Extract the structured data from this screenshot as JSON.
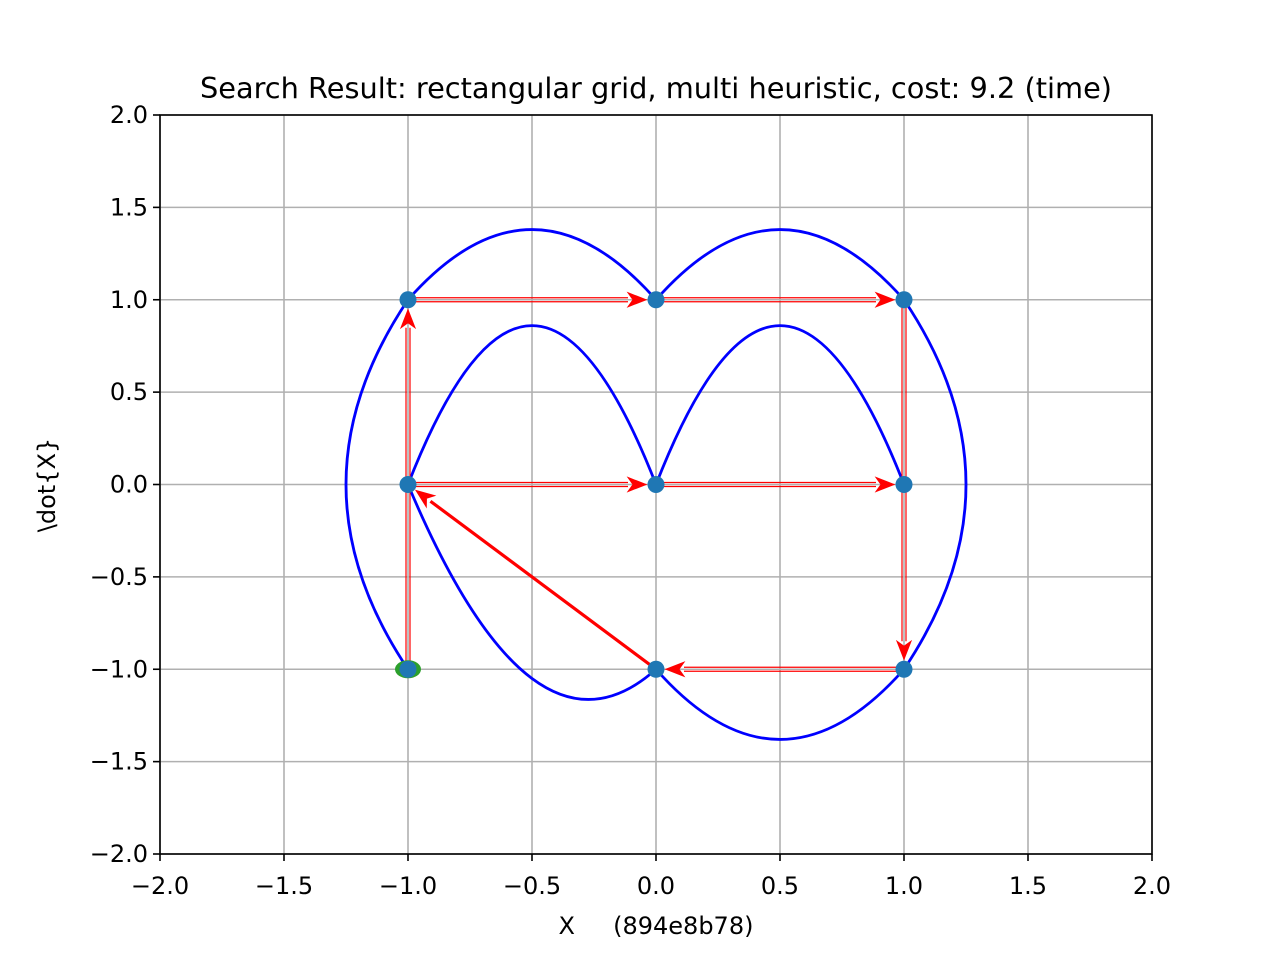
{
  "chart_data": {
    "type": "line",
    "title": "Search Result: rectangular grid, multi heuristic, cost: 9.2 (time)",
    "xlabel": "X     (894e8b78)",
    "ylabel": "\\dot{X}",
    "xlim": [
      -2.0,
      2.0
    ],
    "ylim": [
      -2.0,
      2.0
    ],
    "grid": true,
    "x_ticks": [
      -2.0,
      -1.5,
      -1.0,
      -0.5,
      0.0,
      0.5,
      1.0,
      1.5,
      2.0
    ],
    "x_tick_labels": [
      "−2.0",
      "−1.5",
      "−1.0",
      "−0.5",
      "0.0",
      "0.5",
      "1.0",
      "1.5",
      "2.0"
    ],
    "y_ticks": [
      -2.0,
      -1.5,
      -1.0,
      -0.5,
      0.0,
      0.5,
      1.0,
      1.5,
      2.0
    ],
    "y_tick_labels": [
      "−2.0",
      "−1.5",
      "−1.0",
      "−0.5",
      "0.0",
      "0.5",
      "1.0",
      "1.5",
      "2.0"
    ],
    "nodes": [
      {
        "x": -1,
        "y": 1
      },
      {
        "x": 0,
        "y": 1
      },
      {
        "x": 1,
        "y": 1
      },
      {
        "x": -1,
        "y": 0
      },
      {
        "x": 0,
        "y": 0
      },
      {
        "x": 1,
        "y": 0
      },
      {
        "x": -1,
        "y": -1
      },
      {
        "x": 0,
        "y": -1
      },
      {
        "x": 1,
        "y": -1
      }
    ],
    "start_node": {
      "x": -1,
      "y": -1
    },
    "edges": [
      {
        "from": [
          -1,
          -1
        ],
        "to": [
          -1,
          1
        ]
      },
      {
        "from": [
          -1,
          1
        ],
        "to": [
          0,
          1
        ]
      },
      {
        "from": [
          0,
          1
        ],
        "to": [
          1,
          1
        ]
      },
      {
        "from": [
          1,
          1
        ],
        "to": [
          1,
          -1
        ]
      },
      {
        "from": [
          1,
          -1
        ],
        "to": [
          0,
          -1
        ]
      },
      {
        "from": [
          -1,
          0
        ],
        "to": [
          0,
          0
        ]
      },
      {
        "from": [
          0,
          0
        ],
        "to": [
          1,
          0
        ]
      }
    ],
    "solution_edge": {
      "from": [
        0,
        -1
      ],
      "to": [
        -1,
        0
      ]
    },
    "trajectory_curves": [
      {
        "from": [
          -1,
          -1
        ],
        "to": [
          -1,
          1
        ],
        "peak_x": -1.25
      },
      {
        "from": [
          -1,
          1
        ],
        "to": [
          0,
          1
        ],
        "peak_y": 1.38
      },
      {
        "from": [
          0,
          1
        ],
        "to": [
          1,
          1
        ],
        "peak_y": 1.38
      },
      {
        "from": [
          1,
          1
        ],
        "to": [
          1,
          -1
        ],
        "peak_x": 1.25
      },
      {
        "from": [
          1,
          -1
        ],
        "to": [
          0,
          -1
        ],
        "peak_y": -1.38
      },
      {
        "from": [
          0,
          -1
        ],
        "to": [
          -1,
          0
        ],
        "peak_y": -1.05
      },
      {
        "from": [
          -1,
          0
        ],
        "to": [
          0,
          0
        ],
        "peak_y": 0.86
      },
      {
        "from": [
          0,
          0
        ],
        "to": [
          1,
          0
        ],
        "peak_y": 0.86
      }
    ],
    "colors": {
      "node": "#1f77b4",
      "start_node": "#2ca02c",
      "edge": "#ff0000",
      "trajectory": "#0000ff",
      "grid": "#b0b0b0",
      "axes": "#000000"
    }
  }
}
